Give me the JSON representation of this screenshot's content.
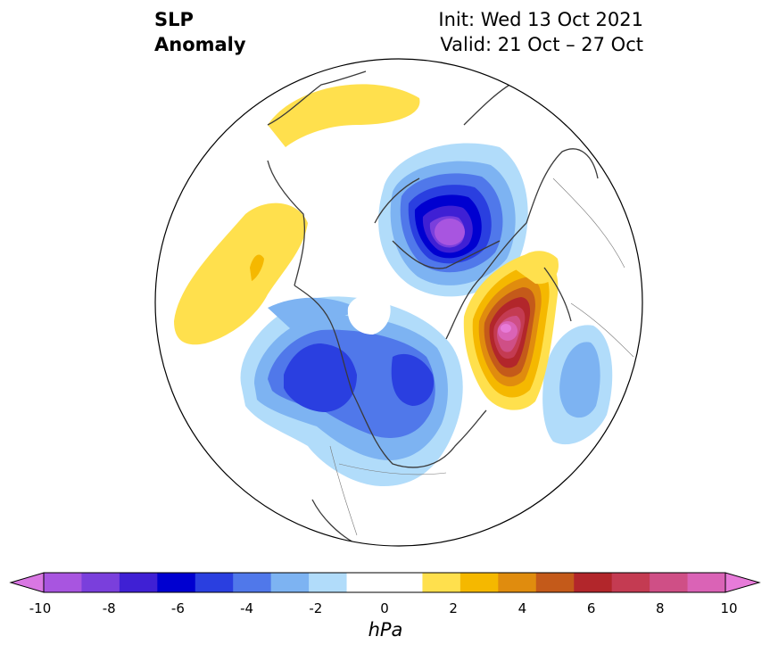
{
  "title": {
    "left_line1": "SLP",
    "left_line2": "Anomaly",
    "init": "Init: Wed 13 Oct 2021",
    "valid": "Valid: 21 Oct – 27 Oct"
  },
  "map": {
    "projection": "north polar stereographic",
    "field": "sea level pressure anomaly",
    "features": [
      {
        "name": "low over Arctic / Laptev Sea",
        "min_anomaly_hPa": -9
      },
      {
        "name": "low over Gulf of Alaska",
        "min_anomaly_hPa": -5
      },
      {
        "name": "low over Hudson Bay",
        "min_anomaly_hPa": -5
      },
      {
        "name": "high over Scandinavia / Baltic",
        "max_anomaly_hPa": 9
      },
      {
        "name": "high over NW Siberia",
        "max_anomaly_hPa": 2
      },
      {
        "name": "low over North Atlantic",
        "min_anomaly_hPa": -3
      }
    ]
  },
  "colorbar": {
    "unit": "hPa",
    "ticks": [
      "-10",
      "-8",
      "-6",
      "-4",
      "-2",
      "0",
      "2",
      "4",
      "6",
      "8",
      "10"
    ],
    "levels": [
      -10,
      -9,
      -8,
      -7,
      -6,
      -5,
      -4,
      -3,
      -2,
      -1,
      1,
      2,
      3,
      4,
      5,
      6,
      7,
      8,
      9,
      10
    ],
    "colors": [
      "#d977e3",
      "#a855e0",
      "#7a3fdc",
      "#3f20d4",
      "#0000d0",
      "#2a3fe0",
      "#5078ea",
      "#7db3f2",
      "#b1dcfa",
      "#ffffff",
      "#ffffff",
      "#ffe04d",
      "#f5b800",
      "#e08c0e",
      "#c45a1a",
      "#b2262b",
      "#c43b52",
      "#cf4f86",
      "#da63b6",
      "#e77bd9"
    ]
  }
}
